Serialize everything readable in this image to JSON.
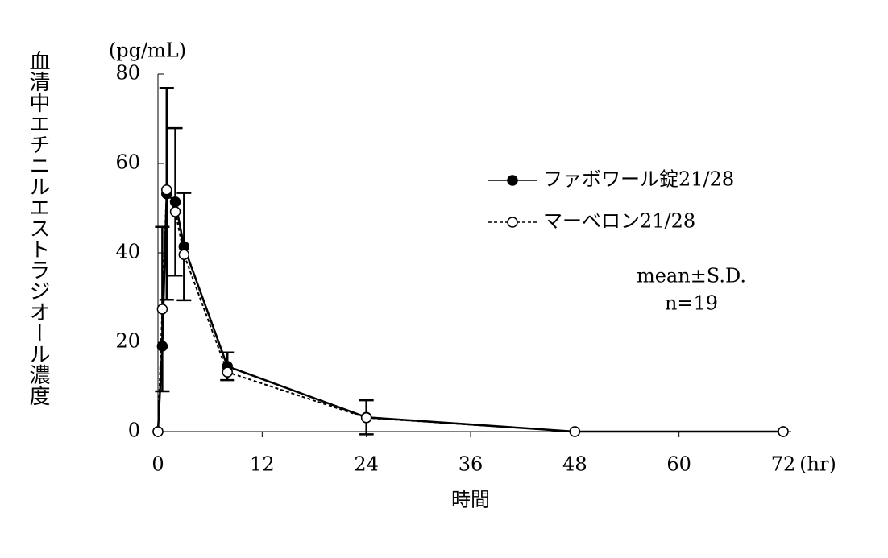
{
  "chart_data": {
    "type": "line",
    "y_label": "血清中エチニルエストラジオール濃度",
    "y_unit": "(pg/mL)",
    "x_label": "時間",
    "x_unit": "(hr)",
    "annotations": [
      "mean±S.D.",
      "n=19"
    ],
    "x": [
      0,
      0.5,
      1,
      2,
      3,
      8,
      24,
      48,
      72
    ],
    "series": [
      {
        "name": "ファボワール錠21/28",
        "color": "#000000",
        "marker": "filled",
        "line_style": "solid",
        "values": [
          0,
          19.1,
          53.2,
          51.4,
          41.4,
          14.6,
          3.2,
          0,
          0
        ],
        "errors": [
          null,
          null,
          23.7,
          16.5,
          12,
          3.1,
          3.8,
          null,
          null
        ]
      },
      {
        "name": "マーベロン21/28",
        "color": "#000000",
        "marker": "open",
        "line_style": "dashed",
        "values": [
          0,
          27.4,
          54.1,
          49.2,
          39.6,
          13.3,
          3.1,
          0,
          0
        ],
        "errors": [
          null,
          18.4,
          null,
          null,
          null,
          null,
          null,
          null,
          null
        ]
      }
    ],
    "xlim": [
      0,
      72
    ],
    "xticks": [
      0,
      12,
      24,
      36,
      48,
      60,
      72
    ],
    "ylim": [
      0,
      80
    ],
    "yticks": [
      0,
      20,
      40,
      60,
      80
    ],
    "grid": false
  }
}
